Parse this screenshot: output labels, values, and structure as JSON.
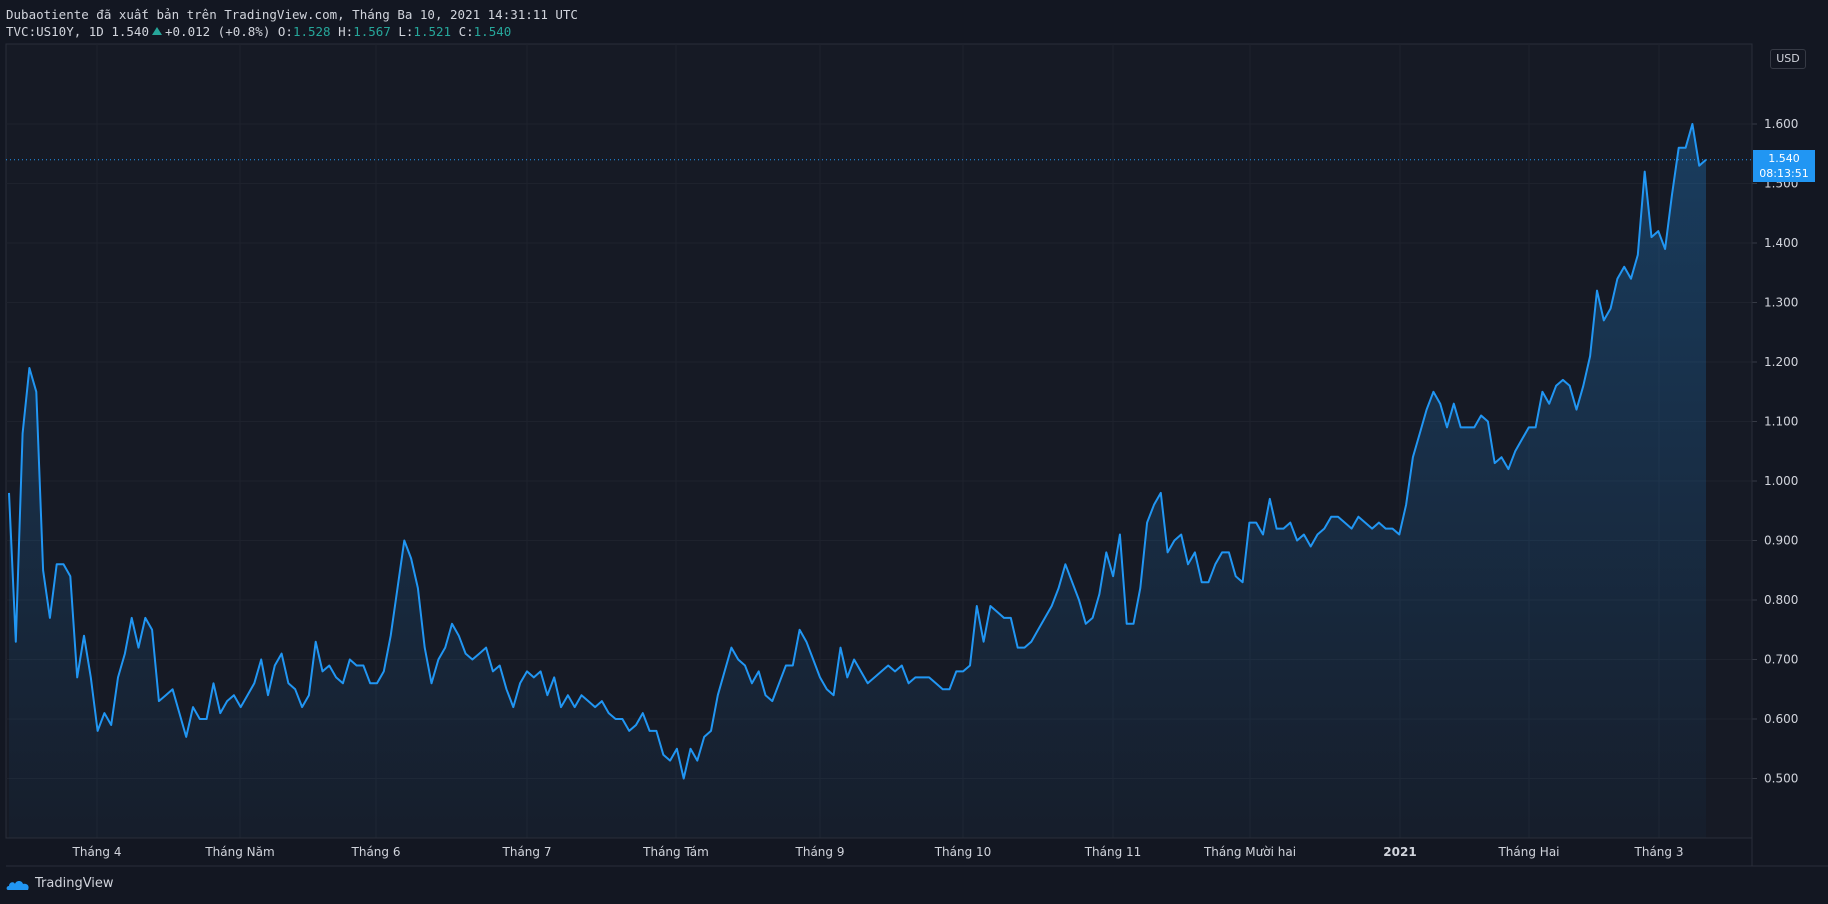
{
  "header": {
    "line1": "Dubaotiente đã xuất bản trên TradingView.com, Tháng Ba 10, 2021 14:31:11 UTC",
    "symbol": "TVC:US10Y, 1D 1.540",
    "change": "+0.012 (+0.8%)",
    "o_label": "O:",
    "o_value": "1.528",
    "h_label": "H:",
    "h_value": "1.567",
    "l_label": "L:",
    "l_value": "1.521",
    "c_label": "C:",
    "c_value": "1.540"
  },
  "currency": "USD",
  "price_tag": {
    "price": "1.540",
    "countdown": "08:13:51"
  },
  "footer": {
    "brand": "TradingView"
  },
  "colors": {
    "line": "#2196f3",
    "background": "#131722",
    "grid": "#1e222d",
    "positive": "#26a69a"
  },
  "chart_data": {
    "type": "area",
    "ylim": [
      0.4,
      1.66
    ],
    "y_ticks": [
      "1.600",
      "1.500",
      "1.400",
      "1.300",
      "1.200",
      "1.100",
      "1.000",
      "0.900",
      "0.800",
      "0.700",
      "0.600",
      "0.500"
    ],
    "x_labels": [
      "Tháng 4",
      "Tháng Năm",
      "Tháng 6",
      "Tháng 7",
      "Tháng Tám",
      "Tháng 9",
      "Tháng 10",
      "Tháng 11",
      "Tháng Mười hai",
      "2021",
      "Tháng Hai",
      "Tháng 3"
    ],
    "last_value": 1.54,
    "values": [
      0.98,
      0.73,
      1.08,
      1.19,
      1.15,
      0.85,
      0.77,
      0.86,
      0.86,
      0.84,
      0.67,
      0.74,
      0.67,
      0.58,
      0.61,
      0.59,
      0.67,
      0.71,
      0.77,
      0.72,
      0.77,
      0.75,
      0.63,
      0.64,
      0.65,
      0.61,
      0.57,
      0.62,
      0.6,
      0.6,
      0.66,
      0.61,
      0.63,
      0.64,
      0.62,
      0.64,
      0.66,
      0.7,
      0.64,
      0.69,
      0.71,
      0.66,
      0.65,
      0.62,
      0.64,
      0.73,
      0.68,
      0.69,
      0.67,
      0.66,
      0.7,
      0.69,
      0.69,
      0.66,
      0.66,
      0.68,
      0.74,
      0.82,
      0.9,
      0.87,
      0.82,
      0.72,
      0.66,
      0.7,
      0.72,
      0.76,
      0.74,
      0.71,
      0.7,
      0.71,
      0.72,
      0.68,
      0.69,
      0.65,
      0.62,
      0.66,
      0.68,
      0.67,
      0.68,
      0.64,
      0.67,
      0.62,
      0.64,
      0.62,
      0.64,
      0.63,
      0.62,
      0.63,
      0.61,
      0.6,
      0.6,
      0.58,
      0.59,
      0.61,
      0.58,
      0.58,
      0.54,
      0.53,
      0.55,
      0.5,
      0.55,
      0.53,
      0.57,
      0.58,
      0.64,
      0.68,
      0.72,
      0.7,
      0.69,
      0.66,
      0.68,
      0.64,
      0.63,
      0.66,
      0.69,
      0.69,
      0.75,
      0.73,
      0.7,
      0.67,
      0.65,
      0.64,
      0.72,
      0.67,
      0.7,
      0.68,
      0.66,
      0.67,
      0.68,
      0.69,
      0.68,
      0.69,
      0.66,
      0.67,
      0.67,
      0.67,
      0.66,
      0.65,
      0.65,
      0.68,
      0.68,
      0.69,
      0.79,
      0.73,
      0.79,
      0.78,
      0.77,
      0.77,
      0.72,
      0.72,
      0.73,
      0.75,
      0.77,
      0.79,
      0.82,
      0.86,
      0.83,
      0.8,
      0.76,
      0.77,
      0.81,
      0.88,
      0.84,
      0.91,
      0.76,
      0.76,
      0.82,
      0.93,
      0.96,
      0.98,
      0.88,
      0.9,
      0.91,
      0.86,
      0.88,
      0.83,
      0.83,
      0.86,
      0.88,
      0.88,
      0.84,
      0.83,
      0.93,
      0.93,
      0.91,
      0.97,
      0.92,
      0.92,
      0.93,
      0.9,
      0.91,
      0.89,
      0.91,
      0.92,
      0.94,
      0.94,
      0.93,
      0.92,
      0.94,
      0.93,
      0.92,
      0.93,
      0.92,
      0.92,
      0.91,
      0.96,
      1.04,
      1.08,
      1.12,
      1.15,
      1.13,
      1.09,
      1.13,
      1.09,
      1.09,
      1.09,
      1.11,
      1.1,
      1.03,
      1.04,
      1.02,
      1.05,
      1.07,
      1.09,
      1.09,
      1.15,
      1.13,
      1.16,
      1.17,
      1.16,
      1.12,
      1.16,
      1.21,
      1.32,
      1.27,
      1.29,
      1.34,
      1.36,
      1.34,
      1.38,
      1.52,
      1.41,
      1.42,
      1.39,
      1.48,
      1.56,
      1.56,
      1.6,
      1.53,
      1.54
    ]
  }
}
